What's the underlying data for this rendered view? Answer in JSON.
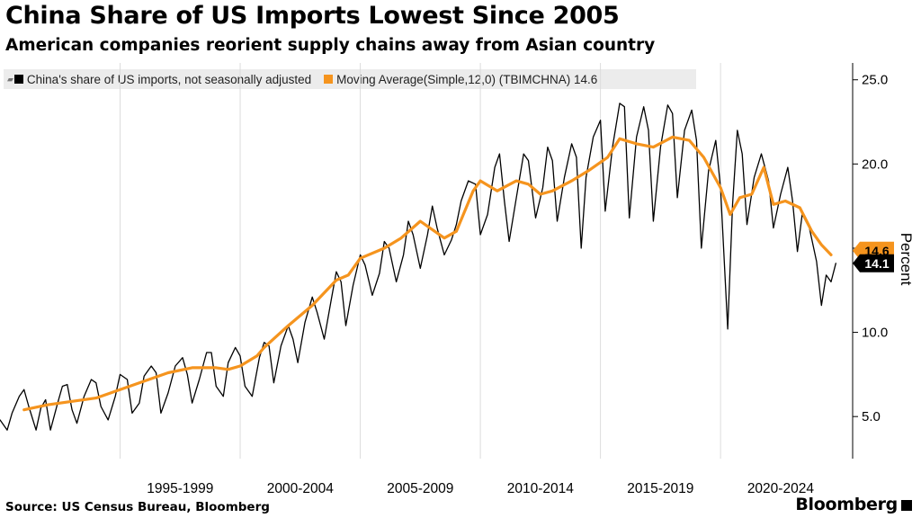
{
  "header": {
    "title": "China Share of US Imports Lowest Since 2005",
    "subtitle": "American companies reorient supply chains away from Asian country"
  },
  "legend": {
    "items": [
      {
        "label": "China's share of US imports, not seasonally adjusted",
        "color": "#000000"
      },
      {
        "label": "Moving Average(Simple,12,0) (TBIMCHNA) 14.6",
        "color": "#f5941e"
      }
    ]
  },
  "footer": {
    "source": "Source: US Census Bureau, Bloomberg",
    "brand": "Bloomberg"
  },
  "chart_data": {
    "type": "line",
    "ylabel": "Percent",
    "ylim": [
      2.5,
      26
    ],
    "y_ticks": [
      5.0,
      10.0,
      15.0,
      20.0,
      25.0
    ],
    "y_tick_labels": [
      "5.0",
      "10.0",
      "15.0",
      "20.0",
      "25.0"
    ],
    "x_range": [
      1990.0,
      2025.5
    ],
    "x_tick_labels": [
      {
        "label": "1995-1999",
        "x": 1995.0
      },
      {
        "label": "2000-2004",
        "x": 2000.0
      },
      {
        "label": "2005-2009",
        "x": 2005.0
      },
      {
        "label": "2010-2014",
        "x": 2010.0
      },
      {
        "label": "2015-2019",
        "x": 2015.0
      },
      {
        "label": "2020-2024",
        "x": 2020.0
      }
    ],
    "grid": "vertical",
    "legend_position": "top-left",
    "last_value_labels": {
      "series_0": "14.1",
      "series_1": "14.6"
    },
    "series": [
      {
        "name": "China's share of US imports, not seasonally adjusted",
        "color": "#000000",
        "points": [
          [
            1990.0,
            4.8
          ],
          [
            1990.3,
            4.2
          ],
          [
            1990.5,
            5.2
          ],
          [
            1990.8,
            6.2
          ],
          [
            1991.0,
            6.6
          ],
          [
            1991.2,
            5.6
          ],
          [
            1991.5,
            4.2
          ],
          [
            1991.7,
            5.5
          ],
          [
            1991.9,
            6.0
          ],
          [
            1992.1,
            4.2
          ],
          [
            1992.4,
            5.8
          ],
          [
            1992.6,
            6.8
          ],
          [
            1992.8,
            6.9
          ],
          [
            1993.0,
            5.4
          ],
          [
            1993.2,
            4.6
          ],
          [
            1993.5,
            6.2
          ],
          [
            1993.8,
            7.2
          ],
          [
            1994.0,
            7.0
          ],
          [
            1994.2,
            5.6
          ],
          [
            1994.5,
            4.8
          ],
          [
            1994.8,
            6.2
          ],
          [
            1995.0,
            7.5
          ],
          [
            1995.3,
            7.2
          ],
          [
            1995.5,
            5.2
          ],
          [
            1995.8,
            5.8
          ],
          [
            1996.0,
            7.4
          ],
          [
            1996.3,
            8.0
          ],
          [
            1996.5,
            7.6
          ],
          [
            1996.7,
            5.2
          ],
          [
            1997.0,
            6.4
          ],
          [
            1997.3,
            8.0
          ],
          [
            1997.6,
            8.5
          ],
          [
            1997.8,
            7.5
          ],
          [
            1998.0,
            5.8
          ],
          [
            1998.3,
            7.2
          ],
          [
            1998.6,
            8.8
          ],
          [
            1998.8,
            8.8
          ],
          [
            1999.0,
            6.8
          ],
          [
            1999.3,
            6.2
          ],
          [
            1999.5,
            8.2
          ],
          [
            1999.8,
            9.1
          ],
          [
            2000.0,
            8.6
          ],
          [
            2000.2,
            6.8
          ],
          [
            2000.5,
            6.2
          ],
          [
            2000.8,
            8.5
          ],
          [
            2001.0,
            9.4
          ],
          [
            2001.2,
            9.2
          ],
          [
            2001.4,
            7.0
          ],
          [
            2001.7,
            9.2
          ],
          [
            2002.0,
            10.4
          ],
          [
            2002.2,
            9.6
          ],
          [
            2002.4,
            8.2
          ],
          [
            2002.7,
            10.6
          ],
          [
            2003.0,
            12.1
          ],
          [
            2003.2,
            11.2
          ],
          [
            2003.5,
            9.6
          ],
          [
            2003.8,
            12.0
          ],
          [
            2004.0,
            13.6
          ],
          [
            2004.2,
            13.0
          ],
          [
            2004.4,
            10.4
          ],
          [
            2004.7,
            12.8
          ],
          [
            2005.0,
            14.6
          ],
          [
            2005.2,
            14.0
          ],
          [
            2005.5,
            12.2
          ],
          [
            2005.8,
            13.5
          ],
          [
            2006.0,
            15.4
          ],
          [
            2006.2,
            15.0
          ],
          [
            2006.5,
            13.0
          ],
          [
            2006.8,
            14.6
          ],
          [
            2007.0,
            16.6
          ],
          [
            2007.2,
            15.8
          ],
          [
            2007.5,
            13.8
          ],
          [
            2007.8,
            15.8
          ],
          [
            2008.0,
            17.5
          ],
          [
            2008.2,
            16.2
          ],
          [
            2008.5,
            14.6
          ],
          [
            2008.8,
            15.5
          ],
          [
            2009.0,
            16.4
          ],
          [
            2009.2,
            17.8
          ],
          [
            2009.5,
            19.0
          ],
          [
            2009.8,
            18.8
          ],
          [
            2010.0,
            15.8
          ],
          [
            2010.3,
            17.0
          ],
          [
            2010.6,
            19.8
          ],
          [
            2010.8,
            20.6
          ],
          [
            2011.0,
            17.8
          ],
          [
            2011.2,
            15.4
          ],
          [
            2011.5,
            18.0
          ],
          [
            2011.8,
            20.6
          ],
          [
            2012.0,
            20.2
          ],
          [
            2012.3,
            16.8
          ],
          [
            2012.6,
            18.6
          ],
          [
            2012.8,
            21.0
          ],
          [
            2013.0,
            20.2
          ],
          [
            2013.2,
            16.6
          ],
          [
            2013.5,
            19.2
          ],
          [
            2013.8,
            21.2
          ],
          [
            2014.0,
            20.4
          ],
          [
            2014.2,
            15.0
          ],
          [
            2014.4,
            19.2
          ],
          [
            2014.7,
            21.6
          ],
          [
            2015.0,
            22.6
          ],
          [
            2015.2,
            17.2
          ],
          [
            2015.5,
            21.0
          ],
          [
            2015.8,
            23.6
          ],
          [
            2016.0,
            23.4
          ],
          [
            2016.2,
            16.8
          ],
          [
            2016.5,
            21.6
          ],
          [
            2016.8,
            23.4
          ],
          [
            2017.0,
            22.0
          ],
          [
            2017.2,
            16.6
          ],
          [
            2017.5,
            21.0
          ],
          [
            2017.8,
            23.5
          ],
          [
            2018.0,
            23.0
          ],
          [
            2018.2,
            18.0
          ],
          [
            2018.5,
            22.0
          ],
          [
            2018.8,
            23.2
          ],
          [
            2019.0,
            21.4
          ],
          [
            2019.2,
            15.0
          ],
          [
            2019.5,
            19.6
          ],
          [
            2019.8,
            21.4
          ],
          [
            2020.0,
            18.6
          ],
          [
            2020.3,
            10.2
          ],
          [
            2020.5,
            17.6
          ],
          [
            2020.7,
            22.0
          ],
          [
            2020.9,
            20.6
          ],
          [
            2021.1,
            16.4
          ],
          [
            2021.4,
            19.2
          ],
          [
            2021.7,
            20.6
          ],
          [
            2022.0,
            19.0
          ],
          [
            2022.2,
            16.2
          ],
          [
            2022.5,
            18.2
          ],
          [
            2022.8,
            19.8
          ],
          [
            2023.0,
            17.8
          ],
          [
            2023.2,
            14.8
          ],
          [
            2023.4,
            17.0
          ],
          [
            2023.7,
            16.2
          ],
          [
            2024.0,
            14.2
          ],
          [
            2024.2,
            11.6
          ],
          [
            2024.4,
            13.4
          ],
          [
            2024.6,
            13.0
          ],
          [
            2024.8,
            14.1
          ]
        ]
      },
      {
        "name": "Moving Average(Simple,12,0) (TBIMCHNA) 14.6",
        "color": "#f5941e",
        "points": [
          [
            1991.0,
            5.4
          ],
          [
            1992.0,
            5.7
          ],
          [
            1993.0,
            5.9
          ],
          [
            1994.0,
            6.1
          ],
          [
            1995.0,
            6.6
          ],
          [
            1996.0,
            7.1
          ],
          [
            1997.0,
            7.6
          ],
          [
            1998.0,
            7.9
          ],
          [
            1999.0,
            7.9
          ],
          [
            1999.5,
            7.8
          ],
          [
            2000.0,
            8.0
          ],
          [
            2000.7,
            8.6
          ],
          [
            2001.0,
            9.1
          ],
          [
            2002.0,
            10.4
          ],
          [
            2003.0,
            11.6
          ],
          [
            2004.0,
            13.1
          ],
          [
            2004.5,
            13.4
          ],
          [
            2005.0,
            14.4
          ],
          [
            2006.0,
            15.0
          ],
          [
            2006.7,
            15.6
          ],
          [
            2007.5,
            16.6
          ],
          [
            2008.5,
            15.6
          ],
          [
            2009.0,
            16.0
          ],
          [
            2009.7,
            18.4
          ],
          [
            2010.0,
            19.0
          ],
          [
            2010.7,
            18.4
          ],
          [
            2011.5,
            19.0
          ],
          [
            2012.0,
            18.8
          ],
          [
            2012.5,
            18.2
          ],
          [
            2013.0,
            18.4
          ],
          [
            2013.8,
            19.0
          ],
          [
            2014.5,
            19.6
          ],
          [
            2015.3,
            20.4
          ],
          [
            2015.8,
            21.5
          ],
          [
            2016.5,
            21.2
          ],
          [
            2017.2,
            21.0
          ],
          [
            2018.0,
            21.6
          ],
          [
            2018.7,
            21.4
          ],
          [
            2019.3,
            20.4
          ],
          [
            2020.0,
            18.6
          ],
          [
            2020.4,
            17.0
          ],
          [
            2020.8,
            18.0
          ],
          [
            2021.3,
            18.2
          ],
          [
            2021.8,
            19.8
          ],
          [
            2022.2,
            17.6
          ],
          [
            2022.7,
            17.8
          ],
          [
            2023.3,
            17.4
          ],
          [
            2023.8,
            16.0
          ],
          [
            2024.2,
            15.2
          ],
          [
            2024.6,
            14.6
          ]
        ]
      }
    ]
  }
}
